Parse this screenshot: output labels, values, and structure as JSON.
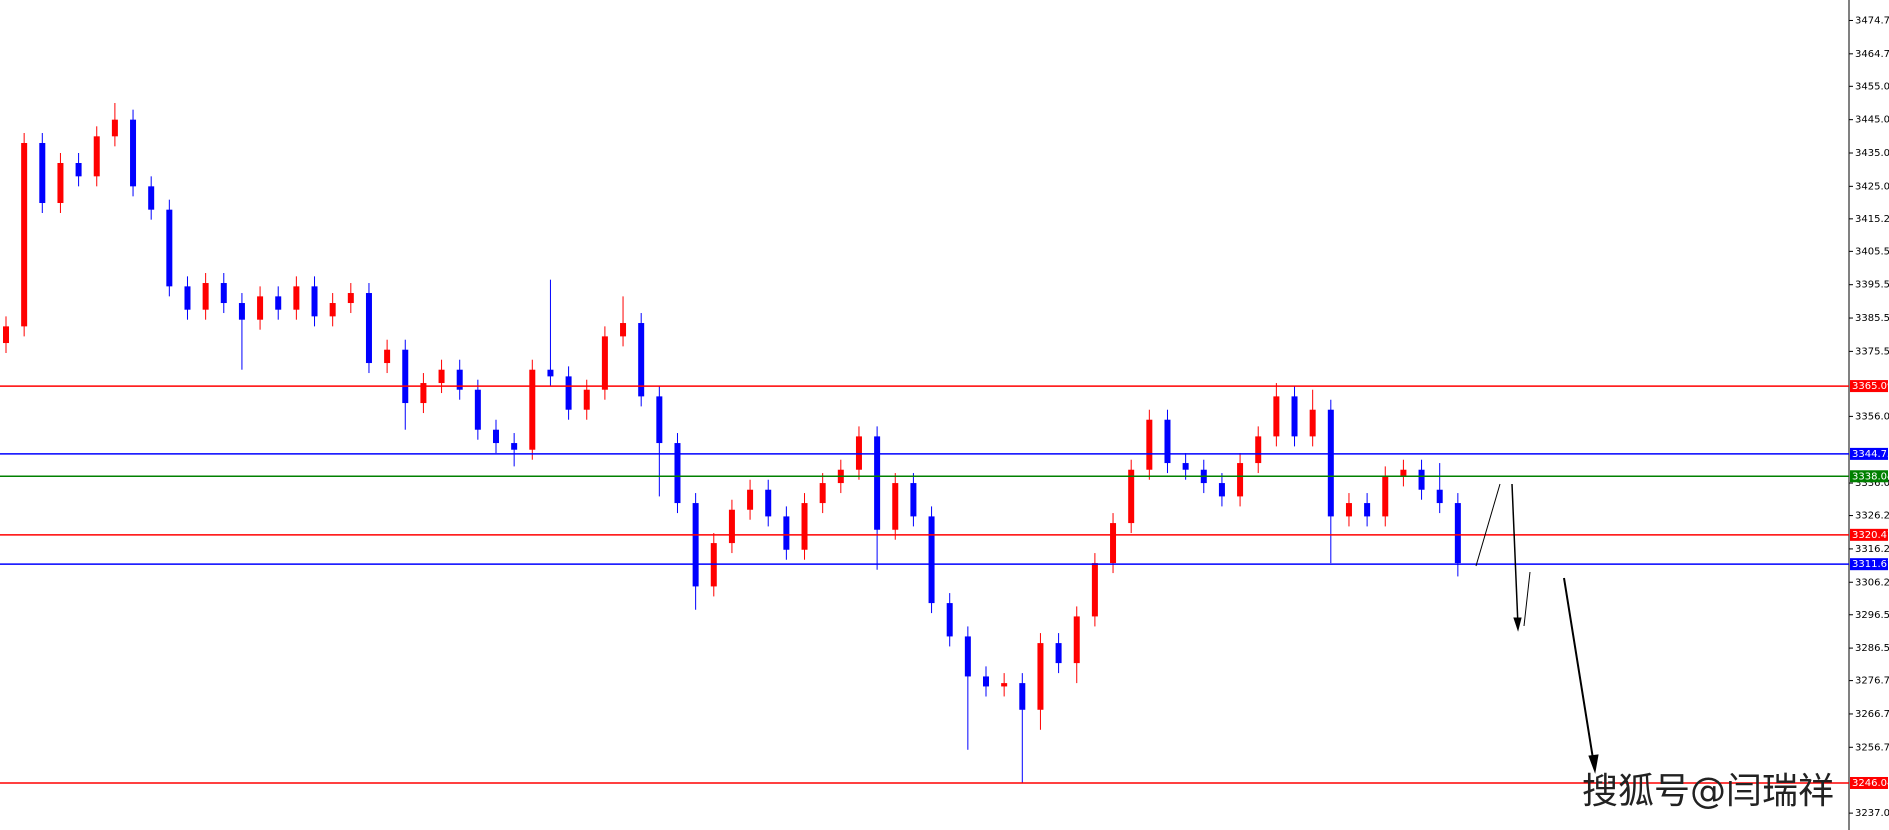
{
  "chart_data": {
    "type": "candlestick",
    "up_color": "#ff0000",
    "down_color": "#0000ff",
    "open": [
      3378,
      3383,
      3438,
      3420,
      3432,
      3428,
      3440,
      3445,
      3425,
      3418,
      3395,
      3388,
      3396,
      3390,
      3385,
      3392,
      3388,
      3395,
      3386,
      3390,
      3393,
      3372,
      3376,
      3360,
      3366,
      3370,
      3364,
      3352,
      3348,
      3346,
      3370,
      3368,
      3358,
      3364,
      3380,
      3384,
      3362,
      3348,
      3330,
      3305,
      3318,
      3328,
      3334,
      3326,
      3316,
      3330,
      3336,
      3340,
      3350,
      3322,
      3336,
      3326,
      3300,
      3290,
      3278,
      3275,
      3276,
      3268,
      3288,
      3282,
      3296,
      3312,
      3324,
      3340,
      3355,
      3342,
      3340,
      3336,
      3332,
      3342,
      3350,
      3362,
      3350,
      3358,
      3326,
      3330,
      3326,
      3338,
      3340,
      3334,
      3330
    ],
    "high": [
      3386,
      3441,
      3441,
      3435,
      3435,
      3443,
      3450,
      3448,
      3428,
      3421,
      3398,
      3399,
      3399,
      3393,
      3395,
      3395,
      3398,
      3398,
      3393,
      3396,
      3396,
      3379,
      3379,
      3369,
      3373,
      3373,
      3367,
      3355,
      3351,
      3373,
      3397,
      3371,
      3367,
      3383,
      3392,
      3387,
      3365,
      3351,
      3333,
      3321,
      3331,
      3337,
      3337,
      3329,
      3333,
      3339,
      3343,
      3353,
      3353,
      3339,
      3339,
      3329,
      3303,
      3293,
      3281,
      3279,
      3279,
      3291,
      3291,
      3299,
      3315,
      3327,
      3343,
      3358,
      3358,
      3345,
      3343,
      3339,
      3345,
      3353,
      3366,
      3365,
      3364,
      3361,
      3333,
      3333,
      3341,
      3343,
      3343,
      3342,
      3333
    ],
    "low": [
      3375,
      3380,
      3417,
      3417,
      3425,
      3425,
      3437,
      3422,
      3415,
      3392,
      3385,
      3385,
      3387,
      3370,
      3382,
      3385,
      3385,
      3383,
      3383,
      3387,
      3369,
      3369,
      3352,
      3357,
      3363,
      3361,
      3349,
      3345,
      3341,
      3343,
      3365,
      3355,
      3355,
      3361,
      3377,
      3359,
      3332,
      3327,
      3298,
      3302,
      3315,
      3325,
      3323,
      3313,
      3313,
      3327,
      3333,
      3337,
      3310,
      3319,
      3323,
      3297,
      3287,
      3256,
      3272,
      3272,
      3246,
      3262,
      3279,
      3276,
      3293,
      3309,
      3321,
      3337,
      3339,
      3337,
      3333,
      3329,
      3329,
      3339,
      3347,
      3347,
      3347,
      3312,
      3323,
      3323,
      3323,
      3335,
      3331,
      3327,
      3308
    ],
    "close": [
      3383,
      3438,
      3420,
      3432,
      3428,
      3440,
      3445,
      3425,
      3418,
      3395,
      3388,
      3396,
      3390,
      3385,
      3392,
      3388,
      3395,
      3386,
      3390,
      3393,
      3372,
      3376,
      3360,
      3366,
      3370,
      3364,
      3352,
      3348,
      3346,
      3370,
      3368,
      3358,
      3364,
      3380,
      3384,
      3362,
      3348,
      3330,
      3305,
      3318,
      3328,
      3334,
      3326,
      3316,
      3330,
      3336,
      3340,
      3350,
      3322,
      3336,
      3326,
      3300,
      3290,
      3278,
      3275,
      3276,
      3268,
      3288,
      3282,
      3296,
      3312,
      3324,
      3340,
      3355,
      3342,
      3340,
      3336,
      3332,
      3342,
      3350,
      3362,
      3350,
      3358,
      3326,
      3330,
      3326,
      3338,
      3340,
      3334,
      3330,
      3312
    ],
    "ylim": [
      3231.94,
      3480.89
    ],
    "yticks": [
      3474.75,
      3464.75,
      {
        "value": 3455,
        "label": "3455.00"
      },
      {
        "value": 3445,
        "label": "3445.00"
      },
      {
        "value": 3435,
        "label": "3435.00"
      },
      {
        "value": 3425,
        "label": "3425.00"
      },
      3415.25,
      {
        "value": 3405.5,
        "label": "3405.50"
      },
      {
        "value": 3395.5,
        "label": "3395.50"
      },
      {
        "value": 3385.5,
        "label": "3385.50"
      },
      {
        "value": 3375.5,
        "label": "3375.50"
      },
      {
        "value": 3356,
        "label": "3356.00"
      },
      {
        "value": 3336,
        "label": "3336.00"
      },
      3326.25,
      3316.25,
      3306.25,
      {
        "value": 3296.5,
        "label": "3296.50"
      },
      {
        "value": 3286.5,
        "label": "3286.50"
      },
      3276.75,
      3266.75,
      3256.75,
      {
        "value": 3237,
        "label": "3237.00"
      }
    ],
    "levels": [
      {
        "value": 3365.09,
        "color": "#ff0000"
      },
      {
        "value": 3344.75,
        "color": "#0000ff"
      },
      {
        "value": 3338.04,
        "color": "#008000"
      },
      {
        "value": 3320.47,
        "color": "#ff0000"
      },
      {
        "value": 3311.67,
        "color": "#0000ff"
      },
      {
        "value": 3246.04,
        "color": "#ff0000"
      }
    ],
    "watermark": "搜狐号@闫瑞祥"
  }
}
